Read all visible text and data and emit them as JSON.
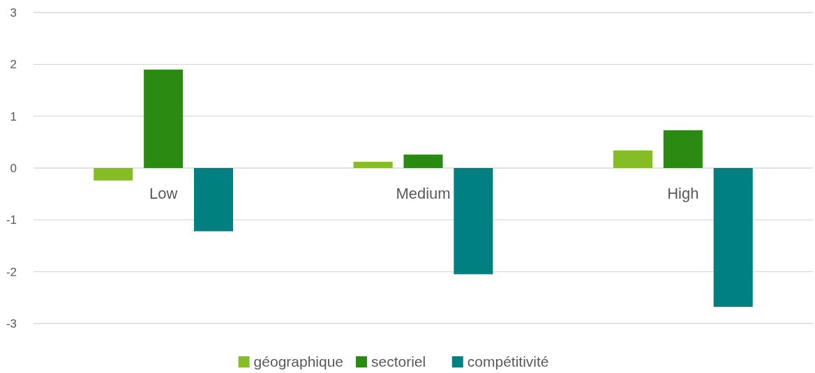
{
  "chart_data": {
    "type": "bar",
    "categories": [
      "Low",
      "Medium",
      "High"
    ],
    "series": [
      {
        "name": "géographique",
        "color": "#86bc25",
        "values": [
          -0.24,
          0.12,
          0.34
        ]
      },
      {
        "name": "sectoriel",
        "color": "#2a8a12",
        "values": [
          1.9,
          0.26,
          0.73
        ]
      },
      {
        "name": "compétitivité",
        "color": "#008080",
        "values": [
          -1.22,
          -2.05,
          -2.68
        ]
      }
    ],
    "ylim": [
      -3,
      3
    ],
    "yticks": [
      -3,
      -2,
      -1,
      0,
      1,
      2,
      3
    ],
    "grid": "y",
    "legend": "bottom"
  }
}
